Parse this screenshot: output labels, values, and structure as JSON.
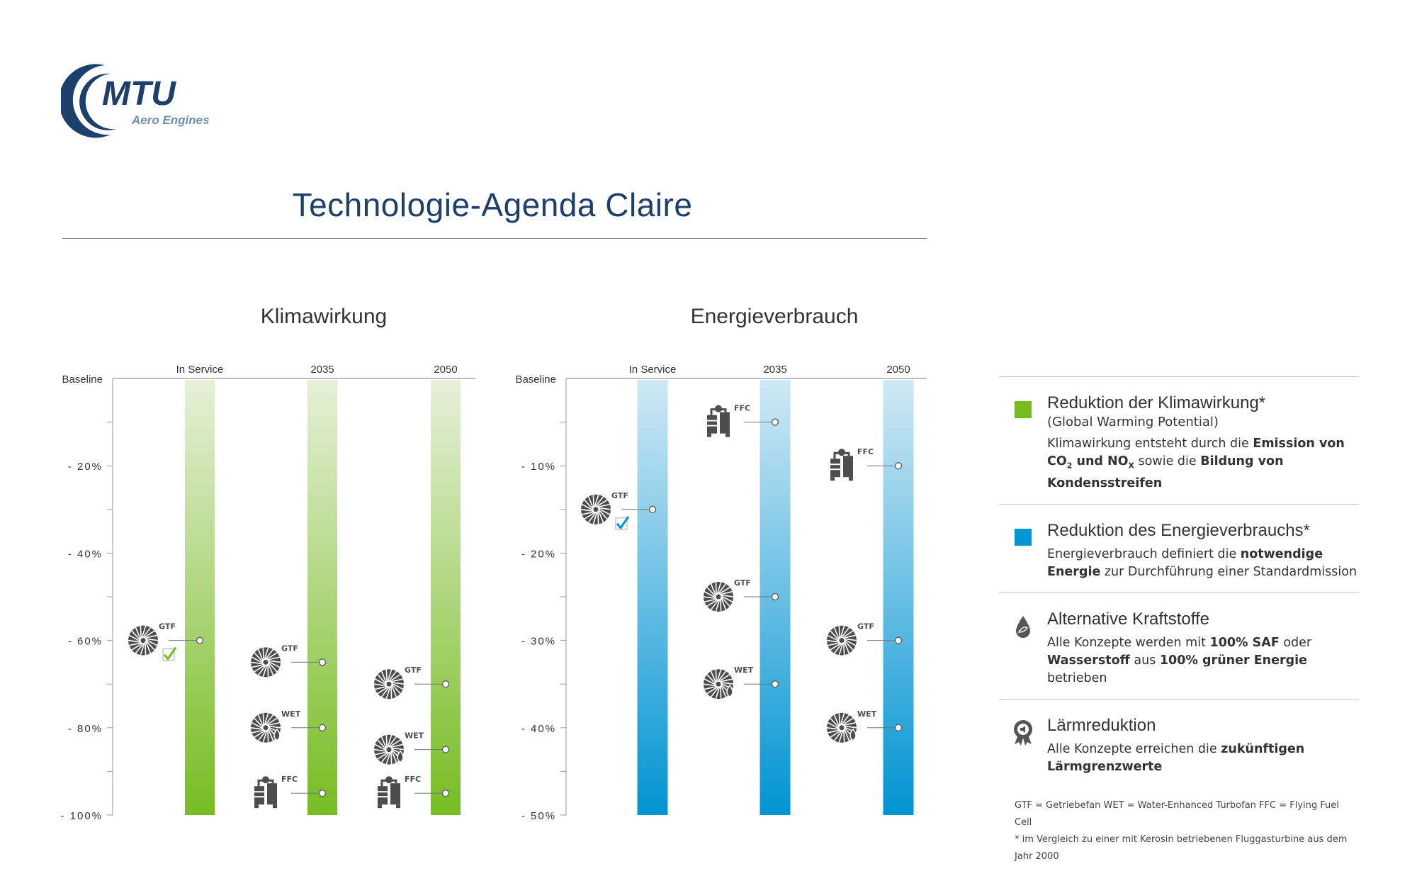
{
  "logo": {
    "brand": "MTU",
    "tagline": "Aero Engines",
    "colors": {
      "primary": "#1d3f6b",
      "secondary": "#6e8fad"
    }
  },
  "title": "Technologie-Agenda Claire",
  "chart_data": [
    {
      "type": "bar",
      "title": "Klimawirkung",
      "baseline_label": "Baseline",
      "ylim": [
        -100,
        0
      ],
      "yticks": [
        -20,
        -40,
        -60,
        -80,
        -100
      ],
      "ytick_labels": [
        "-20%",
        "-40%",
        "-60%",
        "-80%",
        "-100%"
      ],
      "minor_tick_step": 10,
      "categories": [
        "In Service",
        "2035",
        "2050"
      ],
      "bar_color": "#76bc21",
      "points": [
        {
          "category": "In Service",
          "concept": "GTF",
          "value": -60,
          "checked": true
        },
        {
          "category": "2035",
          "concept": "GTF",
          "value": -65
        },
        {
          "category": "2035",
          "concept": "WET",
          "value": -80
        },
        {
          "category": "2035",
          "concept": "FFC",
          "value": -95
        },
        {
          "category": "2050",
          "concept": "GTF",
          "value": -70
        },
        {
          "category": "2050",
          "concept": "WET",
          "value": -85
        },
        {
          "category": "2050",
          "concept": "FFC",
          "value": -95
        }
      ]
    },
    {
      "type": "bar",
      "title": "Energieverbrauch",
      "baseline_label": "Baseline",
      "ylim": [
        -50,
        0
      ],
      "yticks": [
        -10,
        -20,
        -30,
        -40,
        -50
      ],
      "ytick_labels": [
        "-10%",
        "-20%",
        "-30%",
        "-40%",
        "-50%"
      ],
      "minor_tick_step": 5,
      "categories": [
        "In Service",
        "2035",
        "2050"
      ],
      "bar_color": "#0094d2",
      "points": [
        {
          "category": "In Service",
          "concept": "GTF",
          "value": -15,
          "checked": true
        },
        {
          "category": "2035",
          "concept": "FFC",
          "value": -5
        },
        {
          "category": "2035",
          "concept": "GTF",
          "value": -25
        },
        {
          "category": "2035",
          "concept": "WET",
          "value": -35
        },
        {
          "category": "2050",
          "concept": "FFC",
          "value": -10
        },
        {
          "category": "2050",
          "concept": "GTF",
          "value": -30
        },
        {
          "category": "2050",
          "concept": "WET",
          "value": -40
        }
      ]
    }
  ],
  "legend": {
    "items": [
      {
        "marker": "green-square",
        "color": "#76bc21",
        "heading": "Reduktion der Klimawirkung*",
        "sub": "(Global Warming Potential)",
        "body": [
          {
            "t": "Klimawirkung entsteht durch die "
          },
          {
            "t": "Emission von CO",
            "b": true
          },
          {
            "t": "2",
            "b": true,
            "sub": true
          },
          {
            "t": " und NO",
            "b": true
          },
          {
            "t": "X",
            "b": true,
            "sub": true
          },
          {
            "t": " sowie die "
          },
          {
            "t": "Bildung von Kondensstreifen",
            "b": true
          }
        ]
      },
      {
        "marker": "blue-square",
        "color": "#0094d2",
        "heading": "Reduktion des Energieverbrauchs*",
        "body": [
          {
            "t": "Energieverbrauch definiert die "
          },
          {
            "t": "notwendige Energie",
            "b": true
          },
          {
            "t": " zur Durchführung einer Standardmission"
          }
        ]
      },
      {
        "marker": "fuel-drop-icon",
        "heading": "Alternative Kraftstoffe",
        "body": [
          {
            "t": "Alle Konzepte werden mit "
          },
          {
            "t": "100% SAF",
            "b": true
          },
          {
            "t": " oder "
          },
          {
            "t": "Wasserstoff",
            "b": true
          },
          {
            "t": " aus "
          },
          {
            "t": "100% grüner Energie",
            "b": true
          },
          {
            "t": " betrieben"
          }
        ]
      },
      {
        "marker": "noise-award-icon",
        "heading": "Lärmreduktion",
        "body": [
          {
            "t": "Alle Konzepte erreichen die "
          },
          {
            "t": "zukünftigen Lärmgrenzwerte",
            "b": true
          }
        ]
      }
    ],
    "footnotes": [
      "GTF = Getriebefan  WET = Water-Enhanced Turbofan   FFC = Flying Fuel Cell",
      "* im Vergleich zu einer mit Kerosin betriebenen Fluggasturbine aus dem Jahr 2000"
    ]
  }
}
